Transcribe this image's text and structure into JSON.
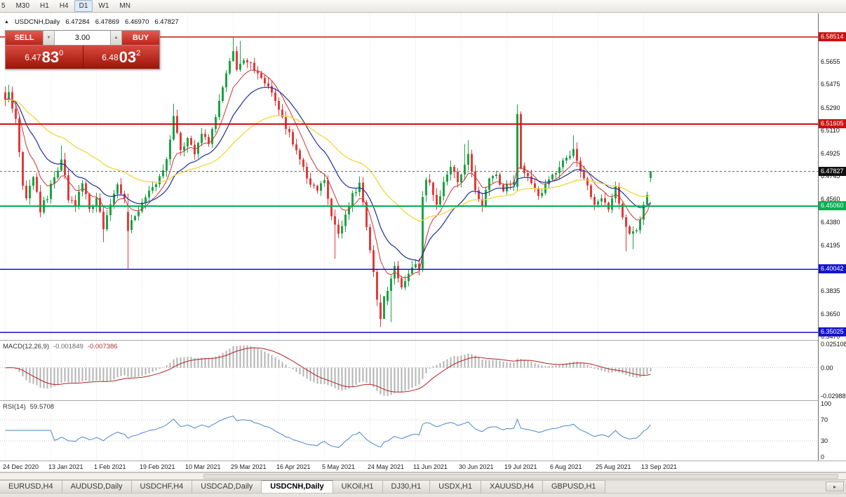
{
  "toolbar": {
    "periods": [
      "5",
      "M30",
      "H1",
      "H4",
      "D1",
      "W1",
      "MN"
    ],
    "active_period": "D1"
  },
  "chart_header": {
    "collapse_arrow": "▲",
    "title": "USDCNH,Daily",
    "open": "6.47284",
    "high": "6.47869",
    "low": "6.46970",
    "close": "6.47827"
  },
  "trade_panel": {
    "sell_label": "SELL",
    "buy_label": "BUY",
    "volume": "3.00",
    "volume_down_icon": "▼",
    "volume_up_icon": "▲",
    "sell_price": {
      "prefix": "6.47",
      "big": "83",
      "sup": "0"
    },
    "buy_price": {
      "prefix": "6.48",
      "big": "03",
      "sup": "2"
    }
  },
  "chart_data": {
    "type": "candlestick",
    "symbol": "USDCNH",
    "timeframe": "Daily",
    "price_range": [
      6.3442,
      6.604
    ],
    "price_ticks": [
      "6.5655",
      "6.5475",
      "6.5290",
      "6.5110",
      "6.4925",
      "6.4745",
      "6.4560",
      "6.4380",
      "6.4195",
      "6.3835",
      "6.3650",
      "6.3470"
    ],
    "levels": [
      {
        "price": 6.58514,
        "label": "6.58514",
        "color": "#cc1111",
        "width": 1.4
      },
      {
        "price": 6.51605,
        "label": "6.51605",
        "color": "#cc1111",
        "width": 2
      },
      {
        "price": 6.4506,
        "label": "6.45060",
        "color": "#00b050",
        "width": 2
      },
      {
        "price": 6.40042,
        "label": "6.40042",
        "color": "#1414cc",
        "width": 1.6
      },
      {
        "price": 6.35025,
        "label": "6.35025",
        "color": "#1414cc",
        "width": 1.6
      }
    ],
    "current_price": {
      "value": 6.47827,
      "label": "6.47827",
      "bg": "#111111"
    },
    "x_labels": [
      "24 Dec 2020",
      "13 Jan 2021",
      "1 Feb 2021",
      "19 Feb 2021",
      "10 Mar 2021",
      "29 Mar 2021",
      "16 Apr 2021",
      "5 May 2021",
      "24 May 2021",
      "11 Jun 2021",
      "30 Jun 2021",
      "19 Jul 2021",
      "6 Aug 2021",
      "25 Aug 2021",
      "13 Sep 2021"
    ],
    "label_step": 13,
    "candle_count": 185,
    "seed": 20210917,
    "candle_colors": {
      "up": "#1ca344",
      "down": "#e13b3b"
    },
    "close_anchors": [
      [
        0,
        6.534
      ],
      [
        1,
        6.54
      ],
      [
        3,
        6.518
      ],
      [
        5,
        6.468
      ],
      [
        6,
        6.458
      ],
      [
        8,
        6.476
      ],
      [
        10,
        6.448
      ],
      [
        12,
        6.458
      ],
      [
        13,
        6.466
      ],
      [
        15,
        6.478
      ],
      [
        16,
        6.488
      ],
      [
        18,
        6.458
      ],
      [
        20,
        6.452
      ],
      [
        22,
        6.468
      ],
      [
        24,
        6.448
      ],
      [
        26,
        6.456
      ],
      [
        28,
        6.432
      ],
      [
        30,
        6.452
      ],
      [
        32,
        6.468
      ],
      [
        34,
        6.455
      ],
      [
        35,
        6.433
      ],
      [
        37,
        6.442
      ],
      [
        39,
        6.455
      ],
      [
        41,
        6.465
      ],
      [
        43,
        6.468
      ],
      [
        45,
        6.478
      ],
      [
        46,
        6.49
      ],
      [
        48,
        6.52
      ],
      [
        50,
        6.496
      ],
      [
        52,
        6.503
      ],
      [
        54,
        6.494
      ],
      [
        56,
        6.508
      ],
      [
        58,
        6.502
      ],
      [
        60,
        6.52
      ],
      [
        62,
        6.545
      ],
      [
        64,
        6.565
      ],
      [
        65,
        6.572
      ],
      [
        66,
        6.558
      ],
      [
        67,
        6.566
      ],
      [
        69,
        6.566
      ],
      [
        71,
        6.56
      ],
      [
        73,
        6.552
      ],
      [
        75,
        6.546
      ],
      [
        77,
        6.532
      ],
      [
        79,
        6.52
      ],
      [
        81,
        6.508
      ],
      [
        83,
        6.494
      ],
      [
        85,
        6.48
      ],
      [
        87,
        6.469
      ],
      [
        89,
        6.462
      ],
      [
        91,
        6.471
      ],
      [
        93,
        6.442
      ],
      [
        95,
        6.428
      ],
      [
        97,
        6.444
      ],
      [
        99,
        6.46
      ],
      [
        101,
        6.468
      ],
      [
        102,
        6.455
      ],
      [
        104,
        6.415
      ],
      [
        106,
        6.378
      ],
      [
        107,
        6.365
      ],
      [
        109,
        6.382
      ],
      [
        111,
        6.401
      ],
      [
        113,
        6.388
      ],
      [
        115,
        6.398
      ],
      [
        117,
        6.403
      ],
      [
        118,
        6.401
      ],
      [
        119,
        6.458
      ],
      [
        120,
        6.472
      ],
      [
        121,
        6.468
      ],
      [
        123,
        6.452
      ],
      [
        125,
        6.47
      ],
      [
        127,
        6.482
      ],
      [
        129,
        6.47
      ],
      [
        131,
        6.486
      ],
      [
        132,
        6.49
      ],
      [
        134,
        6.462
      ],
      [
        136,
        6.452
      ],
      [
        138,
        6.472
      ],
      [
        140,
        6.478
      ],
      [
        142,
        6.462
      ],
      [
        143,
        6.47
      ],
      [
        145,
        6.468
      ],
      [
        146,
        6.524
      ],
      [
        147,
        6.481
      ],
      [
        148,
        6.478
      ],
      [
        150,
        6.468
      ],
      [
        152,
        6.458
      ],
      [
        154,
        6.468
      ],
      [
        156,
        6.474
      ],
      [
        158,
        6.483
      ],
      [
        160,
        6.49
      ],
      [
        162,
        6.496
      ],
      [
        164,
        6.48
      ],
      [
        166,
        6.468
      ],
      [
        168,
        6.452
      ],
      [
        170,
        6.458
      ],
      [
        172,
        6.45
      ],
      [
        174,
        6.464
      ],
      [
        176,
        6.44
      ],
      [
        178,
        6.428
      ],
      [
        180,
        6.432
      ],
      [
        182,
        6.452
      ],
      [
        183,
        6.462
      ],
      [
        184,
        6.47827
      ]
    ],
    "overrides": [
      {
        "i": 1,
        "h": 6.547
      },
      {
        "i": 16,
        "h": 6.499
      },
      {
        "i": 28,
        "l": 6.422
      },
      {
        "i": 35,
        "o": 6.446,
        "c": 6.431,
        "l": 6.401
      },
      {
        "i": 48,
        "h": 6.532
      },
      {
        "i": 65,
        "h": 6.5851
      },
      {
        "i": 67,
        "h": 6.582
      },
      {
        "i": 94,
        "l": 6.409
      },
      {
        "i": 107,
        "o": 6.374,
        "c": 6.361,
        "l": 6.3545
      },
      {
        "i": 108,
        "o": 6.361,
        "c": 6.379
      },
      {
        "i": 110,
        "l": 6.3585
      },
      {
        "i": 118,
        "o": 6.405,
        "c": 6.4,
        "l": 6.3955
      },
      {
        "i": 119,
        "o": 6.401,
        "c": 6.458,
        "l": 6.398,
        "h": 6.4625
      },
      {
        "i": 131,
        "h": 6.5
      },
      {
        "i": 132,
        "h": 6.503
      },
      {
        "i": 146,
        "o": 6.466,
        "c": 6.524,
        "h": 6.5315,
        "l": 6.462
      },
      {
        "i": 147,
        "o": 6.524,
        "c": 6.481,
        "h": 6.526
      },
      {
        "i": 162,
        "h": 6.507
      },
      {
        "i": 177,
        "l": 6.4148
      },
      {
        "i": 179,
        "l": 6.4165
      },
      {
        "i": 184,
        "o": 6.47284,
        "h": 6.47869,
        "l": 6.4697,
        "c": 6.47827
      }
    ],
    "moving_averages": [
      {
        "period": 8,
        "color": "#cc3333",
        "width": 1
      },
      {
        "period": 18,
        "color": "#1b2f9e",
        "width": 1.2
      },
      {
        "period": 45,
        "color": "#f0d53c",
        "width": 1.3
      }
    ],
    "macd": {
      "label": "MACD(12,26,9)",
      "value_main": "-0.001849",
      "value_signal": "-0.007386",
      "fast": 12,
      "slow": 26,
      "signal": 9,
      "axis_max": "0.025108",
      "axis_zero": "0.00",
      "axis_min": "-0.02988",
      "bar_color": "#b3b3b3",
      "signal_color": "#b22222"
    },
    "rsi": {
      "label": "RSI(14)",
      "value": "59.5708",
      "period": 14,
      "levels": [
        70,
        30
      ],
      "axis_labels": [
        "100",
        "70",
        "30",
        "0"
      ],
      "line_color": "#4a86c8"
    }
  },
  "tabs": {
    "items": [
      "EURUSD,H4",
      "AUDUSD,Daily",
      "USDCHF,H4",
      "USDCAD,Daily",
      "USDCNH,Daily",
      "UKOil,H1",
      "DJ30,H1",
      "USDX,H1",
      "XAUUSD,H4",
      "GBPUSD,H1"
    ],
    "active": "USDCNH,Daily",
    "scroll_icon": "▸"
  }
}
